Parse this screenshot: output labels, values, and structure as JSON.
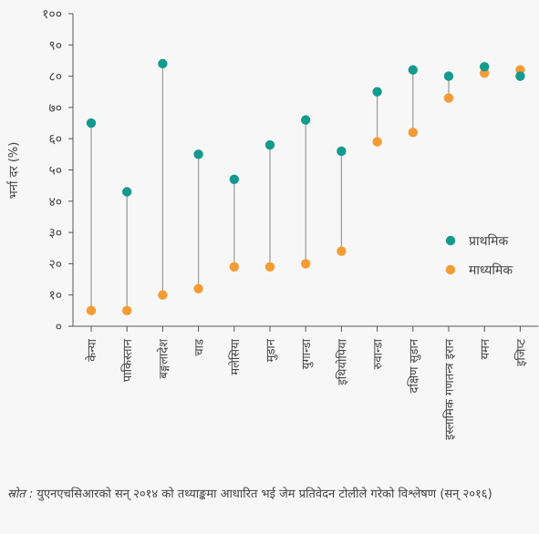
{
  "chart_data": {
    "type": "dot-range",
    "ylabel": "भर्ना दर (%)",
    "ylim": [
      0,
      100
    ],
    "y_ticks": [
      "०",
      "१०",
      "२०",
      "३०",
      "४०",
      "५०",
      "६०",
      "७०",
      "८०",
      "९०",
      "१००"
    ],
    "categories": [
      "केन्या",
      "पाकिस्तान",
      "बङ्गलादेश",
      "चाड",
      "मलेसिया",
      "मुडान",
      "युगान्डा",
      "इथियोपिया",
      "रुवान्डा",
      "दक्षिण सुडान",
      "इस्लामिक गणतन्त्र इरान",
      "यमन",
      "इजिप्ट"
    ],
    "series": [
      {
        "name": "प्राथमिक",
        "color": "#149a8e",
        "values": [
          65,
          43,
          84,
          55,
          47,
          58,
          66,
          56,
          75,
          82,
          80,
          83,
          80
        ]
      },
      {
        "name": "माध्यमिक",
        "color": "#f39c33",
        "values": [
          5,
          5,
          10,
          12,
          19,
          19,
          20,
          24,
          59,
          62,
          73,
          81,
          82
        ]
      }
    ],
    "legend_position": "right",
    "grid": false
  },
  "source": {
    "prefix": "स्रोत :",
    "text": " युएनएचसिआरको सन् २०१४ को तथ्याङ्कमा आधारित भई जेम प्रतिवेदन टोलीले गरेको विश्लेषण (सन् २०१६)"
  }
}
